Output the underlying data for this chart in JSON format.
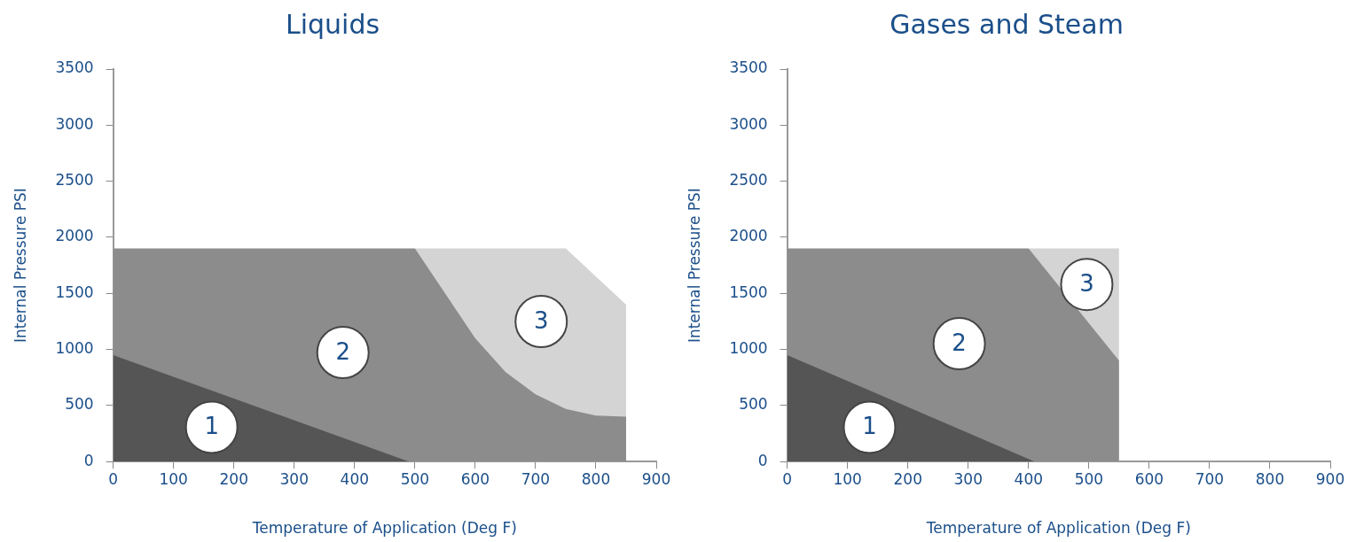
{
  "chart_data": [
    {
      "type": "area",
      "title": "Liquids",
      "xlabel": "Temperature of Application (Deg F)",
      "ylabel": "Internal Pressure PSI",
      "xlim": [
        0,
        900
      ],
      "ylim": [
        0,
        3500
      ],
      "xticks": [
        0,
        100,
        200,
        300,
        400,
        500,
        600,
        700,
        800,
        900
      ],
      "yticks": [
        0,
        500,
        1000,
        1500,
        2000,
        2500,
        3000,
        3500
      ],
      "legend": false,
      "grid": false,
      "series": [
        {
          "name": "1",
          "type": "area",
          "color": "#555555",
          "x": [
            0,
            490
          ],
          "values": [
            950,
            0
          ]
        },
        {
          "name": "2",
          "type": "area",
          "color": "#8c8c8c",
          "x": [
            0,
            500,
            550,
            600,
            650,
            700,
            750,
            800,
            850,
            850
          ],
          "values": [
            1900,
            1900,
            1500,
            1100,
            800,
            600,
            470,
            410,
            400,
            0
          ]
        },
        {
          "name": "3",
          "type": "area",
          "color": "#d4d4d4",
          "x": [
            500,
            750,
            850,
            850
          ],
          "values": [
            1900,
            1900,
            1400,
            0
          ]
        }
      ]
    },
    {
      "type": "area",
      "title": "Gases and Steam",
      "xlabel": "Temperature of Application (Deg F)",
      "ylabel": "Internal Pressure PSI",
      "xlim": [
        0,
        900
      ],
      "ylim": [
        0,
        3500
      ],
      "xticks": [
        0,
        100,
        200,
        300,
        400,
        500,
        600,
        700,
        800,
        900
      ],
      "yticks": [
        0,
        500,
        1000,
        1500,
        2000,
        2500,
        3000,
        3500
      ],
      "legend": false,
      "grid": false,
      "series": [
        {
          "name": "1",
          "type": "area",
          "color": "#555555",
          "x": [
            0,
            410
          ],
          "values": [
            950,
            0
          ]
        },
        {
          "name": "2",
          "type": "area",
          "color": "#8c8c8c",
          "x": [
            0,
            400,
            550,
            550
          ],
          "values": [
            1900,
            1900,
            900,
            0
          ]
        },
        {
          "name": "3",
          "type": "area",
          "color": "#d4d4d4",
          "x": [
            400,
            550,
            550
          ],
          "values": [
            1900,
            1900,
            0
          ]
        }
      ]
    }
  ]
}
